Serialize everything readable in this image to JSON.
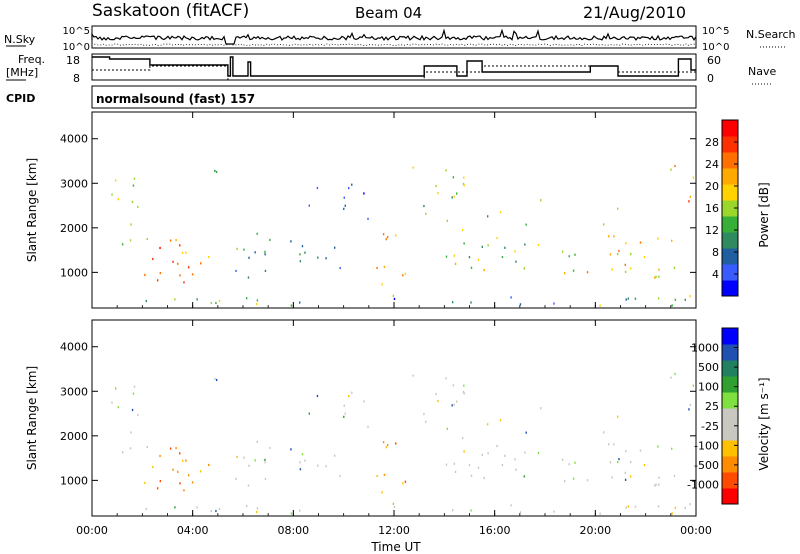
{
  "header": {
    "station": "Saskatoon (fitACF)",
    "beam": "Beam 04",
    "date": "21/Aug/2010"
  },
  "strips": {
    "nsky_label": "N.Sky",
    "nsearch_label": "N.Search",
    "freq_label_line1": "Freq.",
    "freq_label_line2": "[MHz]",
    "nave_label": "Nave",
    "cpid_label": "CPID",
    "cpid_text": "normalsound (fast) 157",
    "noise_ticks": [
      "10^5",
      "10^0"
    ],
    "freq_ticks": [
      "18",
      "8"
    ],
    "nave_ticks": [
      "60",
      "0"
    ]
  },
  "colors": {
    "power": [
      "#0000ff",
      "#3a5cff",
      "#2060a0",
      "#308a60",
      "#38b038",
      "#9bd62a",
      "#ffd200",
      "#ffaa00",
      "#ff7000",
      "#ff3000",
      "#ff0000"
    ],
    "velocity": [
      "#ff0000",
      "#ff4a00",
      "#ff8c00",
      "#ffc000",
      "#c8c8c0",
      "#c8c8c0",
      "#80e040",
      "#30a030",
      "#208060",
      "#2050b0",
      "#0000ff"
    ]
  },
  "chart_data": [
    {
      "type": "heatmap",
      "name": "power-panel",
      "ylabel": "Slant Range [km]",
      "xlabel": "",
      "x_ticks": [
        "00:00",
        "04:00",
        "08:00",
        "12:00",
        "16:00",
        "20:00",
        "00:00"
      ],
      "y_ticks": [
        1000,
        2000,
        3000,
        4000
      ],
      "ylim": [
        200,
        4600
      ],
      "colorbar": {
        "label": "Power [dB]",
        "ticks": [
          "4",
          "8",
          "12",
          "16",
          "20",
          "24",
          "28"
        ]
      }
    },
    {
      "type": "heatmap",
      "name": "velocity-panel",
      "ylabel": "Slant Range [km]",
      "xlabel": "Time UT",
      "x_ticks": [
        "00:00",
        "04:00",
        "08:00",
        "12:00",
        "16:00",
        "20:00",
        "00:00"
      ],
      "y_ticks": [
        1000,
        2000,
        3000,
        4000
      ],
      "ylim": [
        200,
        4600
      ],
      "colorbar": {
        "label": "Velocity [m s⁻¹]",
        "ticks": [
          "-1000",
          "-500",
          "-100",
          "-25",
          "25",
          "100",
          "500",
          "1000"
        ]
      }
    }
  ]
}
